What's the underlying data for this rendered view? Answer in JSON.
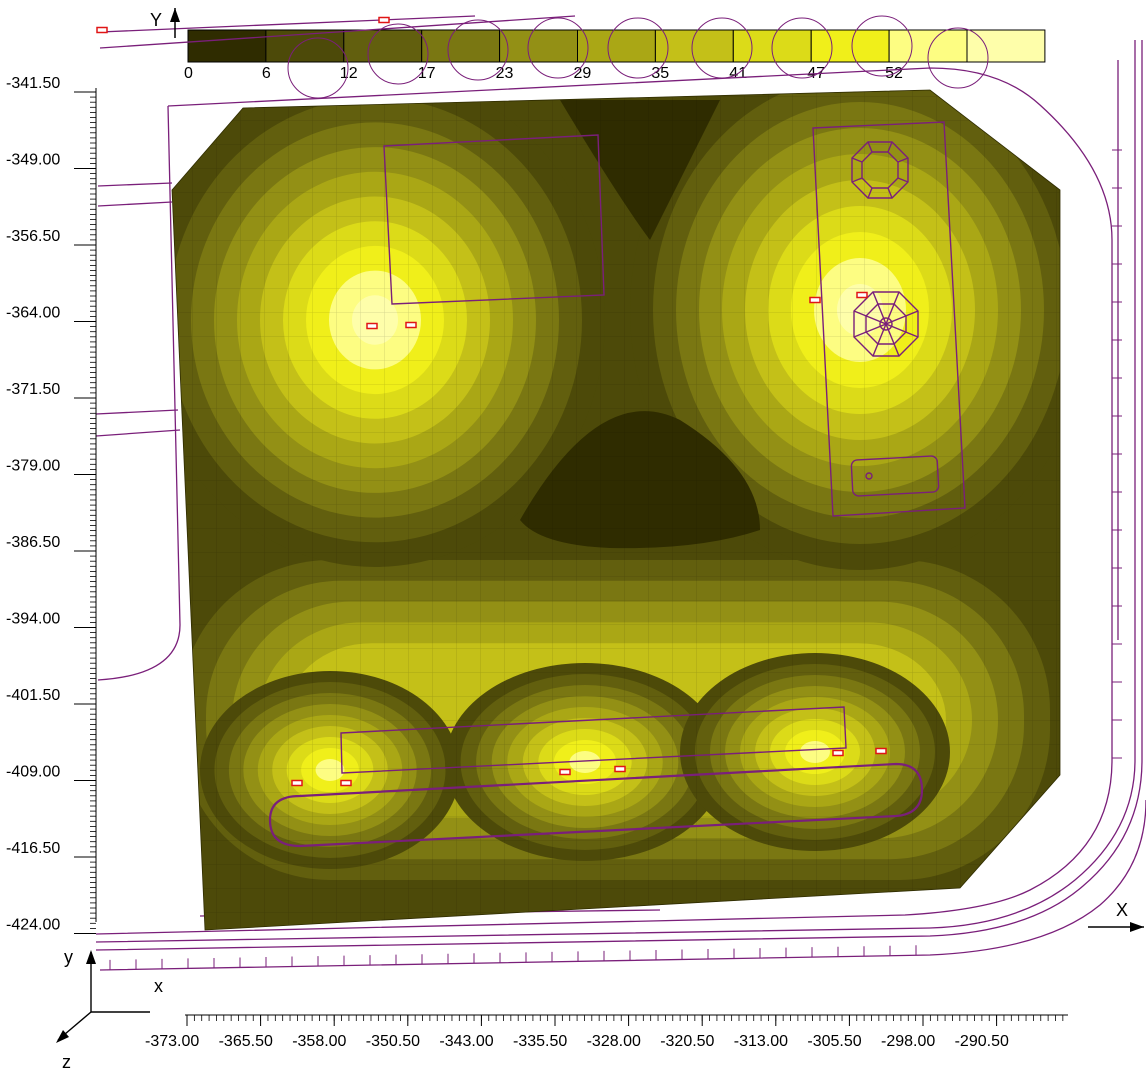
{
  "legend": {
    "labels": [
      "0",
      "6",
      "12",
      "17",
      "23",
      "29",
      "35",
      "41",
      "47",
      "52"
    ],
    "colors": [
      "#2f2c00",
      "#4d4a09",
      "#625f0e",
      "#7a7712",
      "#939015",
      "#aaa715",
      "#c4c018",
      "#dcdb18",
      "#f0ef1a",
      "#fdfd82",
      "#fefeaa"
    ]
  },
  "axes": {
    "y_title": "Y",
    "x_title": "X",
    "y_ticks": [
      "-341.50",
      "-349.00",
      "-356.50",
      "-364.00",
      "-371.50",
      "-379.00",
      "-386.50",
      "-394.00",
      "-401.50",
      "-409.00",
      "-416.50",
      "-424.00"
    ],
    "x_ticks": [
      "-373.00",
      "-365.50",
      "-358.00",
      "-350.50",
      "-343.00",
      "-335.50",
      "-328.00",
      "-320.50",
      "-313.00",
      "-305.50",
      "-298.00",
      "-290.50"
    ]
  },
  "triad": {
    "y": "y",
    "x": "x",
    "z": "z"
  },
  "colors": {
    "outline": "#7a1f7a",
    "luminaire": "#e01515",
    "axis": "#000000"
  }
}
